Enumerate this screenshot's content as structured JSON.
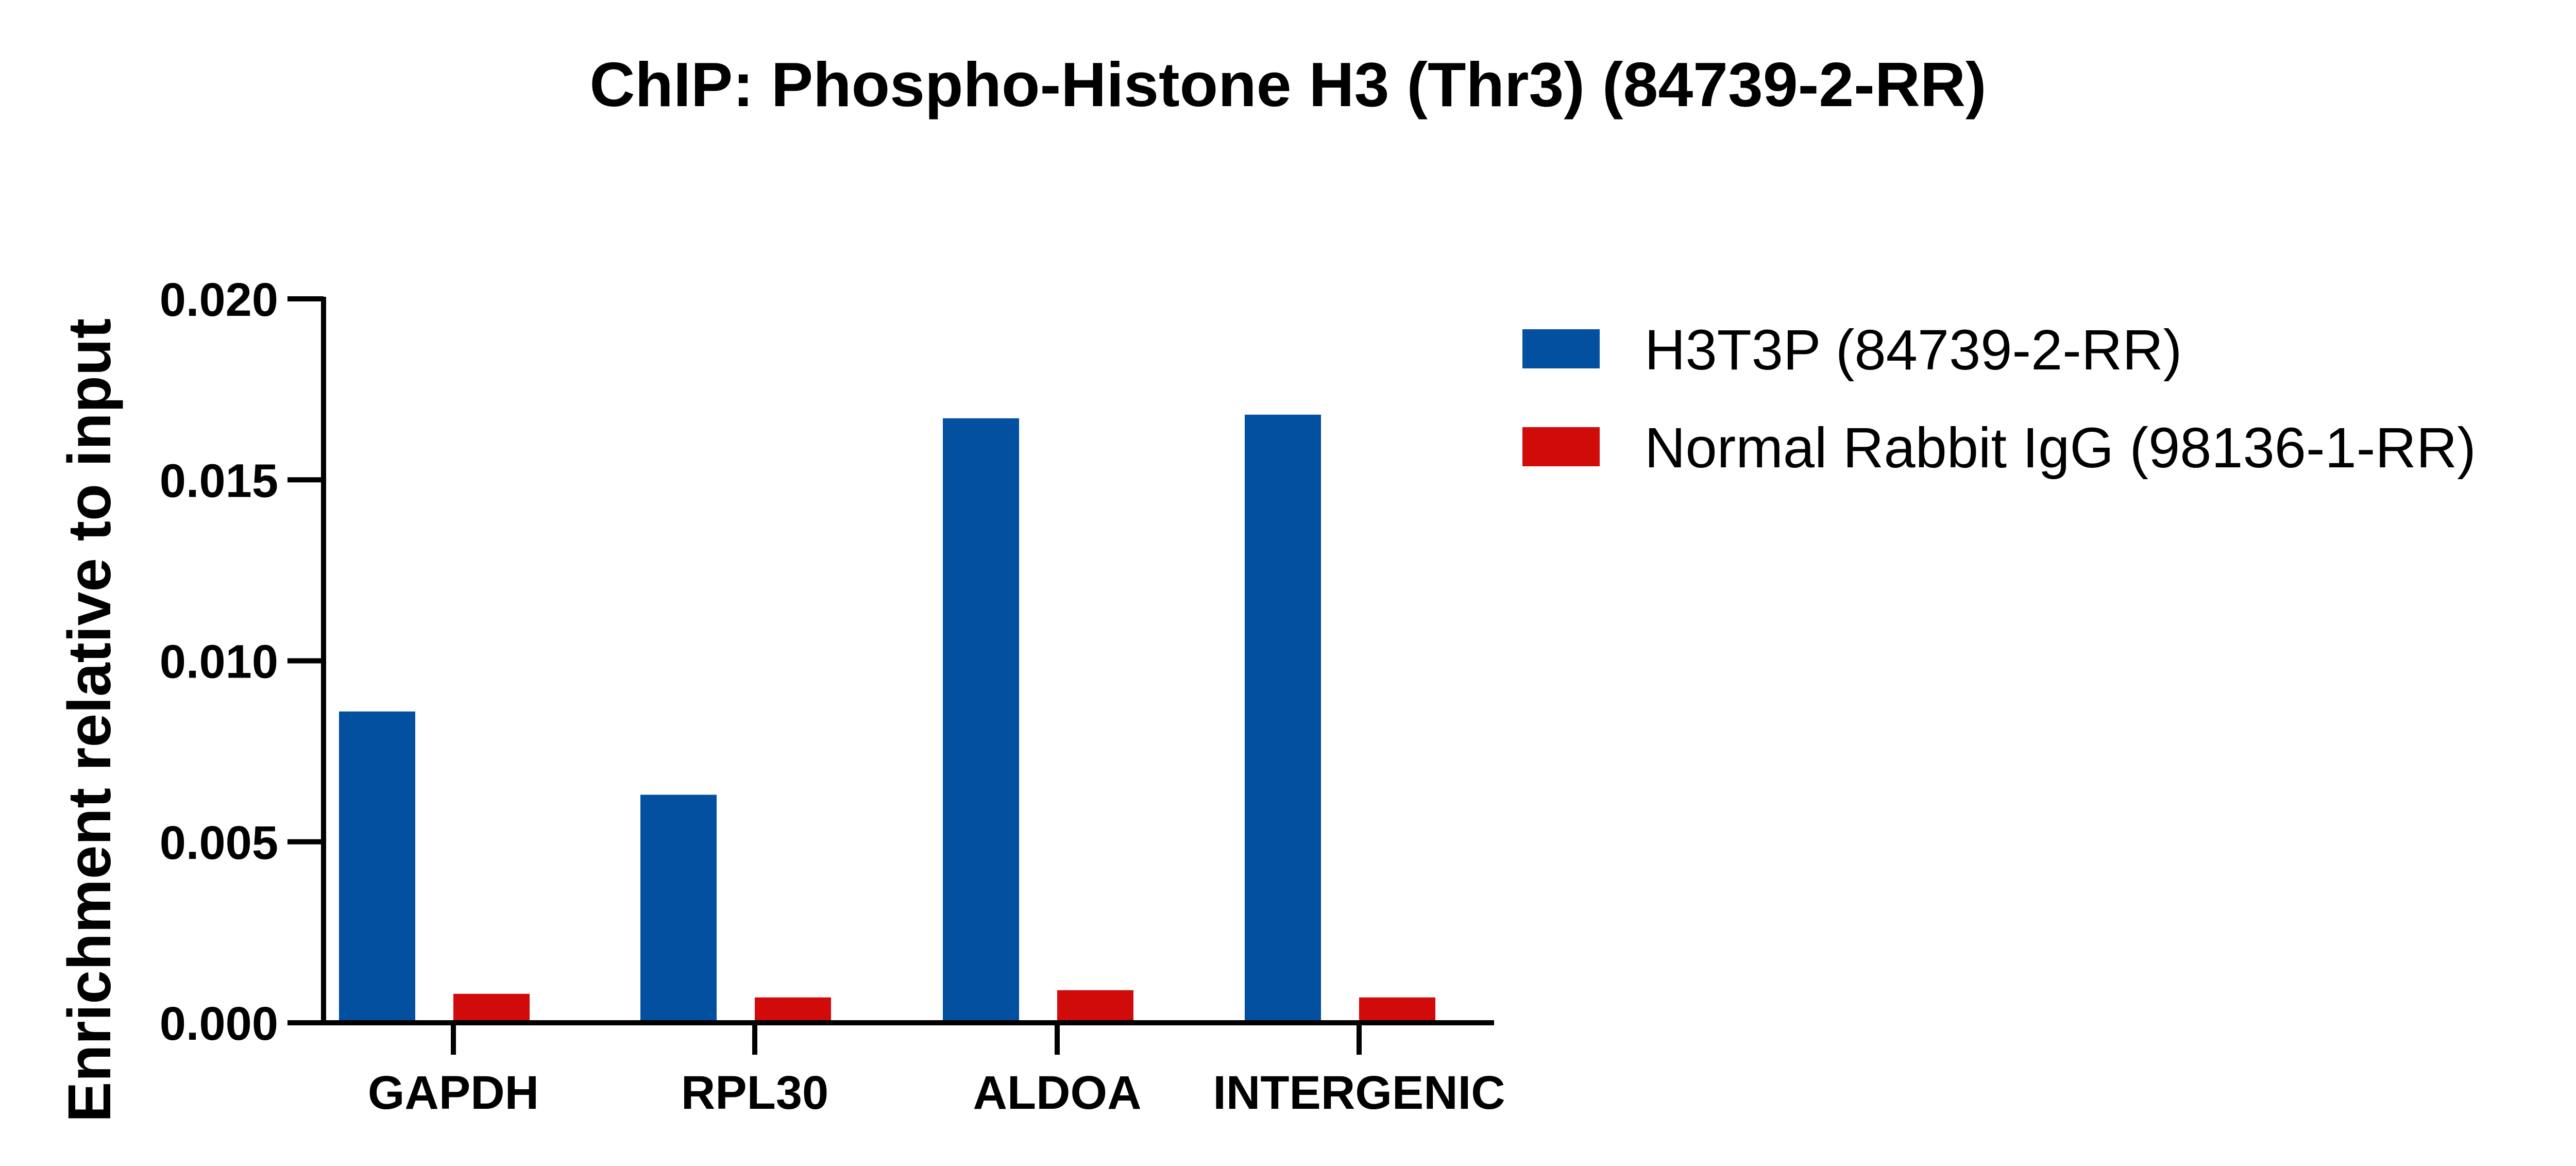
{
  "chart_data": {
    "type": "bar",
    "title": "ChIP: Phospho-Histone H3 (Thr3) (84739-2-RR)",
    "xlabel": "",
    "ylabel": "Enrichment relative to input",
    "categories": [
      "GAPDH",
      "RPL30",
      "ALDOA",
      "INTERGENIC"
    ],
    "series": [
      {
        "name": "H3T3P (84739-2-RR)",
        "color": "#0350A0",
        "values": [
          0.0086,
          0.0063,
          0.0167,
          0.0168
        ]
      },
      {
        "name": "Normal Rabbit IgG (98136-1-RR)",
        "color": "#D10A0A",
        "values": [
          0.0008,
          0.0007,
          0.0009,
          0.0007
        ]
      }
    ],
    "ylim": [
      0,
      0.02
    ],
    "yticks": [
      "0.000",
      "0.005",
      "0.010",
      "0.015",
      "0.020"
    ],
    "grid": false,
    "legend_position": "top-right"
  }
}
